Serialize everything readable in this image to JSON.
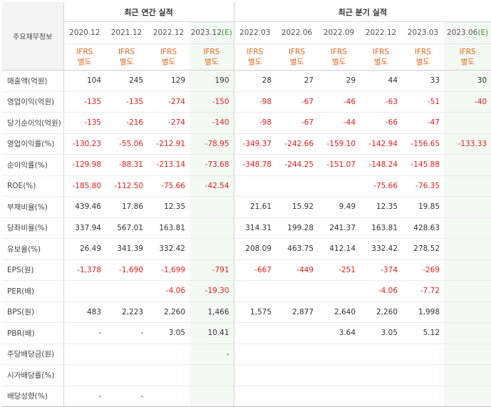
{
  "header": {
    "corner_label": "주요재무정보",
    "annual_title": "최근 연간 실적",
    "quarter_title": "최근 분기 실적",
    "accounting_top": "IFRS",
    "accounting_bottom": "별도",
    "estimate_mark": "(E)"
  },
  "periods": [
    {
      "label": "2020.12",
      "est": false
    },
    {
      "label": "2021.12",
      "est": false
    },
    {
      "label": "2022.12",
      "est": false
    },
    {
      "label": "2023.12",
      "est": true
    },
    {
      "label": "2022.03",
      "est": false
    },
    {
      "label": "2022.06",
      "est": false
    },
    {
      "label": "2022.09",
      "est": false
    },
    {
      "label": "2022.12",
      "est": false
    },
    {
      "label": "2023.03",
      "est": false
    },
    {
      "label": "2023.06",
      "est": true
    }
  ],
  "rows": [
    {
      "label": "매출액(억원)",
      "values": [
        "104",
        "245",
        "129",
        "190",
        "28",
        "27",
        "29",
        "44",
        "33",
        "30"
      ]
    },
    {
      "label": "영업이익(억원)",
      "values": [
        "-135",
        "-135",
        "-274",
        "-150",
        "-98",
        "-67",
        "-46",
        "-63",
        "-51",
        "-40"
      ]
    },
    {
      "label": "당기순이익(억원)",
      "values": [
        "-135",
        "-216",
        "-274",
        "-140",
        "-98",
        "-67",
        "-44",
        "-66",
        "-47",
        ""
      ]
    },
    {
      "label": "영업이익률(%)",
      "values": [
        "-130.23",
        "-55.06",
        "-212.91",
        "-78.95",
        "-349.37",
        "-242.66",
        "-159.10",
        "-142.94",
        "-156.65",
        "-133.33"
      ]
    },
    {
      "label": "순이익률(%)",
      "values": [
        "-129.98",
        "-88.31",
        "-213.14",
        "-73.68",
        "-348.78",
        "-244.25",
        "-151.07",
        "-148.24",
        "-145.88",
        ""
      ]
    },
    {
      "label": "ROE(%)",
      "values": [
        "-185.80",
        "-112.50",
        "-75.66",
        "-42.54",
        "",
        "",
        "",
        "-75.66",
        "-76.35",
        ""
      ]
    },
    {
      "label": "부채비율(%)",
      "values": [
        "439.46",
        "17.86",
        "12.35",
        "",
        "21.61",
        "15.92",
        "9.49",
        "12.35",
        "19.85",
        ""
      ]
    },
    {
      "label": "당좌비율(%)",
      "values": [
        "337.94",
        "567.01",
        "163.81",
        "",
        "314.31",
        "199.28",
        "241.37",
        "163.81",
        "428.63",
        ""
      ]
    },
    {
      "label": "유보율(%)",
      "values": [
        "26.49",
        "341.39",
        "332.42",
        "",
        "208.09",
        "463.75",
        "412.14",
        "332.42",
        "278.52",
        ""
      ]
    },
    {
      "label": "EPS(원)",
      "values": [
        "-1,378",
        "-1,690",
        "-1,699",
        "-791",
        "-667",
        "-449",
        "-251",
        "-374",
        "-269",
        ""
      ]
    },
    {
      "label": "PER(배)",
      "values": [
        "",
        "",
        "-4.06",
        "-19.30",
        "",
        "",
        "",
        "-4.06",
        "-7.72",
        ""
      ]
    },
    {
      "label": "BPS(원)",
      "values": [
        "483",
        "2,223",
        "2,260",
        "1,466",
        "1,575",
        "2,877",
        "2,640",
        "2,260",
        "1,998",
        ""
      ]
    },
    {
      "label": "PBR(배)",
      "values": [
        "-",
        "-",
        "3.05",
        "10.41",
        "",
        "",
        "3.64",
        "3.05",
        "5.12",
        ""
      ]
    },
    {
      "label": "주당배당금(원)",
      "values": [
        "",
        "",
        "",
        "-",
        "",
        "",
        "",
        "",
        "",
        ""
      ]
    },
    {
      "label": "시가배당률(%)",
      "values": [
        "",
        "",
        "",
        "",
        "",
        "",
        "",
        "",
        "",
        ""
      ]
    },
    {
      "label": "배당성향(%)",
      "values": [
        "-",
        "-",
        "",
        "",
        "",
        "",
        "",
        "",
        "",
        ""
      ]
    }
  ],
  "colors": {
    "negative": "#e02020",
    "accounting": "#e8651c",
    "estimate_mark": "#2e9a3c",
    "estimate_shade": "#f3faf2"
  }
}
